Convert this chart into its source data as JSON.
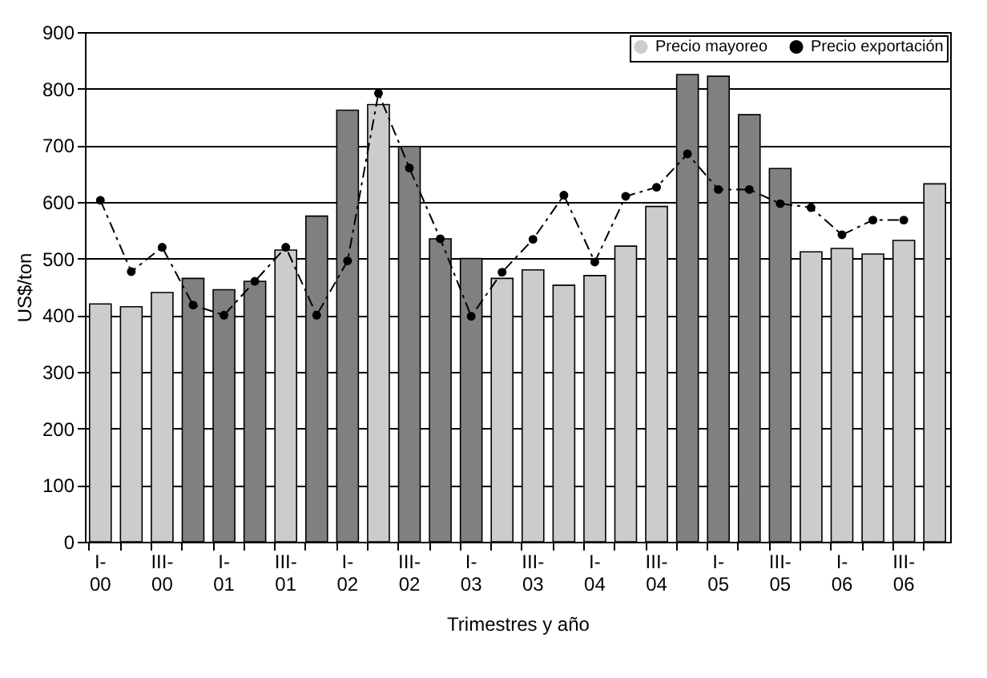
{
  "chart_data": {
    "type": "bar",
    "xlabel": "Trimestres y año",
    "ylabel": "US$/ton",
    "categories": [
      "I-00",
      null,
      "III-00",
      null,
      "I-01",
      null,
      "III-01",
      null,
      "I-02",
      null,
      "III-02",
      null,
      "I-03",
      null,
      "III-03",
      null,
      "I-04",
      null,
      "III-04",
      null,
      "I-05",
      null,
      "III-05",
      null,
      "I-06",
      null,
      "III-06",
      null
    ],
    "series": [
      {
        "name": "Precio mayoreo",
        "color": "#cccccc",
        "colors": [
          "#cccccc",
          "#cccccc",
          "#cccccc",
          "#808080",
          "#808080",
          "#808080",
          "#cccccc",
          "#808080",
          "#808080",
          "#cccccc",
          "#808080",
          "#808080",
          "#808080",
          "#cccccc",
          "#cccccc",
          "#cccccc",
          "#cccccc",
          "#cccccc",
          "#cccccc",
          "#808080",
          "#808080",
          "#808080",
          "#808080",
          "#cccccc",
          "#cccccc",
          "#cccccc",
          "#cccccc",
          "#cccccc"
        ],
        "values": [
          420,
          415,
          440,
          465,
          445,
          460,
          515,
          575,
          762,
          772,
          698,
          535,
          500,
          465,
          480,
          453,
          470,
          522,
          592,
          825,
          822,
          754,
          659,
          512,
          518,
          508,
          532,
          632
        ]
      },
      {
        "name": "Precio exportación",
        "type": "line",
        "color": "#000000",
        "marker": "circle",
        "line_style": "dashed",
        "values": [
          603,
          477,
          520,
          418,
          400,
          460,
          520,
          400,
          496,
          792,
          660,
          535,
          398,
          476,
          534,
          612,
          494,
          610,
          626,
          685,
          622,
          622,
          597,
          590,
          542,
          568,
          568,
          null
        ]
      }
    ],
    "ylim": [
      0,
      900
    ],
    "yticks": [
      0,
      100,
      200,
      300,
      400,
      500,
      600,
      700,
      800,
      900
    ],
    "grid": "y",
    "legend": "top right"
  }
}
